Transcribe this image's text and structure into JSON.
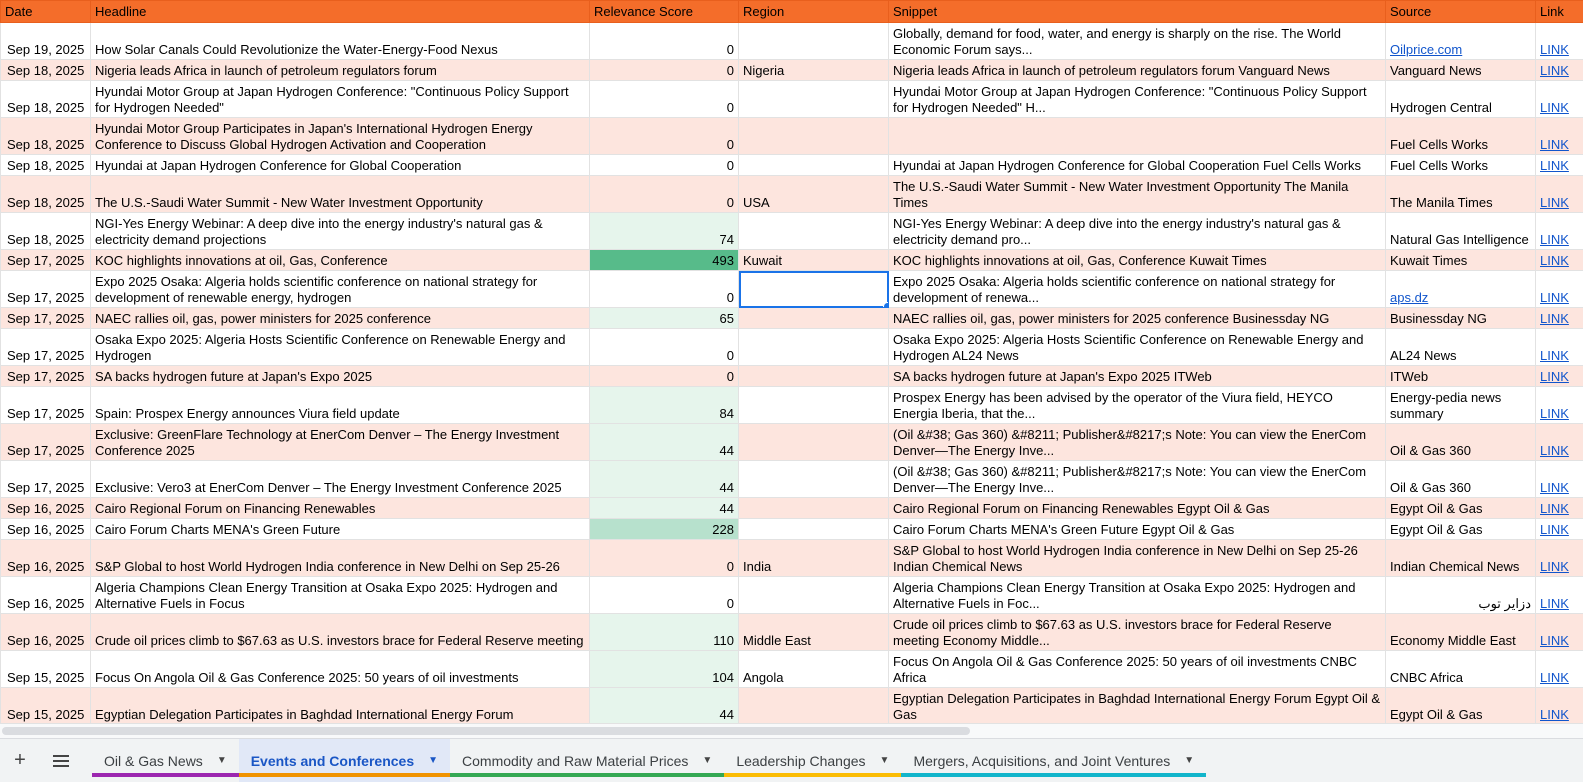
{
  "columns": [
    "Date",
    "Headline",
    "Relevance Score",
    "Region",
    "Snippet",
    "Source",
    "Link"
  ],
  "rows": [
    {
      "date": "Sep 19, 2025",
      "headline": "How Solar Canals Could Revolutionize the Water-Energy-Food Nexus",
      "score": "0",
      "region": "",
      "snippet": "Globally, demand for food, water, and energy is sharply on the rise. The World Economic Forum says...",
      "source": "Oilprice.com",
      "source_link": true,
      "link": "LINK"
    },
    {
      "date": "Sep 18, 2025",
      "headline": "Nigeria leads Africa in launch of petroleum regulators forum",
      "score": "0",
      "region": "Nigeria",
      "snippet": "Nigeria leads Africa in launch of petroleum regulators forum Vanguard News",
      "source": "Vanguard News",
      "link": "LINK"
    },
    {
      "date": "Sep 18, 2025",
      "headline": "Hyundai Motor Group at Japan Hydrogen Conference: \"Continuous Policy Support for Hydrogen Needed\"",
      "score": "0",
      "region": "",
      "snippet": "Hyundai Motor Group at Japan Hydrogen Conference: \"Continuous Policy Support for Hydrogen Needed\" H...",
      "source": "Hydrogen Central",
      "link": "LINK"
    },
    {
      "date": "Sep 18, 2025",
      "headline": "Hyundai Motor Group Participates in Japan's International Hydrogen Energy Conference to Discuss Global Hydrogen Activation and Cooperation",
      "score": "0",
      "region": "",
      "snippet": "",
      "source": "Fuel Cells Works",
      "link": "LINK"
    },
    {
      "date": "Sep 18, 2025",
      "headline": "Hyundai at Japan Hydrogen Conference for Global Cooperation",
      "score": "0",
      "region": "",
      "snippet": "Hyundai at Japan Hydrogen Conference for Global Cooperation Fuel Cells Works",
      "source": "Fuel Cells Works",
      "link": "LINK"
    },
    {
      "date": "Sep 18, 2025",
      "headline": "The U.S.-Saudi Water Summit - New Water Investment Opportunity",
      "score": "0",
      "region": "USA",
      "snippet": "The U.S.-Saudi Water Summit - New Water Investment Opportunity The Manila Times",
      "source": "The Manila Times",
      "link": "LINK"
    },
    {
      "date": "Sep 18, 2025",
      "headline": "NGI-Yes Energy Webinar: A deep dive into the energy industry's natural gas & electricity demand projections",
      "score": "74",
      "region": "",
      "snippet": "NGI-Yes Energy Webinar: A deep dive into the energy industry's natural gas & electricity demand pro...",
      "source": "Natural Gas Intelligence",
      "link": "LINK"
    },
    {
      "date": "Sep 17, 2025",
      "headline": "KOC highlights innovations at oil, Gas, Conference",
      "score": "493",
      "region": "Kuwait",
      "snippet": "KOC highlights innovations at oil, Gas, Conference Kuwait Times",
      "source": "Kuwait Times",
      "link": "LINK"
    },
    {
      "date": "Sep 17, 2025",
      "headline": "Expo 2025 Osaka: Algeria holds scientific conference on national strategy for development of renewable energy, hydrogen",
      "score": "0",
      "region": "",
      "snippet": "Expo 2025 Osaka: Algeria holds scientific conference on national strategy for development of renewa...",
      "source": "aps.dz",
      "source_link": true,
      "link": "LINK",
      "selected_region": true
    },
    {
      "date": "Sep 17, 2025",
      "headline": "NAEC rallies oil, gas, power ministers for 2025 conference",
      "score": "65",
      "region": "",
      "snippet": "NAEC rallies oil, gas, power ministers for 2025 conference Businessday NG",
      "source": "Businessday NG",
      "link": "LINK"
    },
    {
      "date": "Sep 17, 2025",
      "headline": "Osaka Expo 2025: Algeria Hosts Scientific Conference on Renewable Energy and Hydrogen",
      "score": "0",
      "region": "",
      "snippet": "Osaka Expo 2025: Algeria Hosts Scientific Conference on Renewable Energy and Hydrogen AL24 News",
      "source": "AL24 News",
      "link": "LINK"
    },
    {
      "date": "Sep 17, 2025",
      "headline": "SA backs hydrogen future at Japan's Expo 2025",
      "score": "0",
      "region": "",
      "snippet": "SA backs hydrogen future at Japan's Expo 2025 ITWeb",
      "source": "ITWeb",
      "link": "LINK"
    },
    {
      "date": "Sep 17, 2025",
      "headline": "Spain: Prospex Energy announces Viura field update",
      "score": "84",
      "region": "",
      "snippet": "Prospex Energy has been advised by the operator of the Viura field, HEYCO Energia Iberia, that the...",
      "source": "Energy-pedia news summary",
      "link": "LINK"
    },
    {
      "date": "Sep 17, 2025",
      "headline": "Exclusive: GreenFlare Technology at EnerCom Denver – The Energy Investment Conference 2025",
      "score": "44",
      "region": "",
      "snippet": "(Oil &#38; Gas 360) &#8211; Publisher&#8217;s Note: You can view the EnerCom Denver—The Energy Inve...",
      "source": "Oil & Gas 360",
      "link": "LINK"
    },
    {
      "date": "Sep 17, 2025",
      "headline": "Exclusive: Vero3 at EnerCom Denver – The Energy Investment Conference 2025",
      "score": "44",
      "region": "",
      "snippet": "(Oil &#38; Gas 360) &#8211; Publisher&#8217;s Note: You can view the EnerCom Denver—The Energy Inve...",
      "source": "Oil & Gas 360",
      "link": "LINK"
    },
    {
      "date": "Sep 16, 2025",
      "headline": "Cairo Regional Forum on Financing Renewables",
      "score": "44",
      "region": "",
      "snippet": "Cairo Regional Forum on Financing Renewables Egypt Oil & Gas",
      "source": "Egypt Oil & Gas",
      "link": "LINK"
    },
    {
      "date": "Sep 16, 2025",
      "headline": "Cairo Forum Charts MENA's Green Future",
      "score": "228",
      "region": "",
      "snippet": "Cairo Forum Charts MENA's Green Future Egypt Oil & Gas",
      "source": "Egypt Oil & Gas",
      "link": "LINK"
    },
    {
      "date": "Sep 16, 2025",
      "headline": "S&P Global to host World Hydrogen India conference in New Delhi on Sep 25-26",
      "score": "0",
      "region": "India",
      "snippet": "S&P Global to host World Hydrogen India conference in New Delhi on Sep 25-26 Indian Chemical News",
      "source": "Indian Chemical News",
      "link": "LINK"
    },
    {
      "date": "Sep 16, 2025",
      "headline": "Algeria Champions Clean Energy Transition at Osaka Expo 2025: Hydrogen and Alternative Fuels in Focus",
      "score": "0",
      "region": "",
      "snippet": "Algeria Champions Clean Energy Transition at Osaka Expo 2025: Hydrogen and Alternative Fuels in Foc...",
      "source": "دزاير توب",
      "source_rtl": true,
      "link": "LINK"
    },
    {
      "date": "Sep 16, 2025",
      "headline": "Crude oil prices climb to $67.63 as U.S. investors brace for Federal Reserve meeting",
      "score": "110",
      "region": "Middle East",
      "snippet": "Crude oil prices climb to $67.63 as U.S. investors brace for Federal Reserve meeting Economy Middle...",
      "source": "Economy Middle East",
      "link": "LINK"
    },
    {
      "date": "Sep 15, 2025",
      "headline": "Focus On Angola Oil & Gas Conference 2025: 50 years of oil investments",
      "score": "104",
      "region": "Angola",
      "snippet": "Focus On Angola Oil & Gas Conference 2025: 50 years of oil investments CNBC Africa",
      "source": "CNBC Africa",
      "link": "LINK"
    },
    {
      "date": "Sep 15, 2025",
      "headline": "Egyptian Delegation Participates in Baghdad International Energy Forum",
      "score": "44",
      "region": "",
      "snippet": "Egyptian Delegation Participates in Baghdad International Energy Forum Egypt Oil & Gas",
      "source": "Egypt Oil & Gas",
      "link": "LINK"
    }
  ],
  "tabs": [
    {
      "label": "Oil & Gas News",
      "color": "#9c27b0"
    },
    {
      "label": "Events and Conferences",
      "color": "#f09300",
      "active": true
    },
    {
      "label": "Commodity and Raw Material Prices",
      "color": "#34a853"
    },
    {
      "label": "Leadership Changes",
      "color": "#fbbc04"
    },
    {
      "label": "Mergers, Acquisitions, and Joint Ventures",
      "color": "#12b5cb"
    }
  ],
  "toolbar": {
    "add_icon": "plus-icon",
    "menu_icon": "hamburger-icon"
  }
}
